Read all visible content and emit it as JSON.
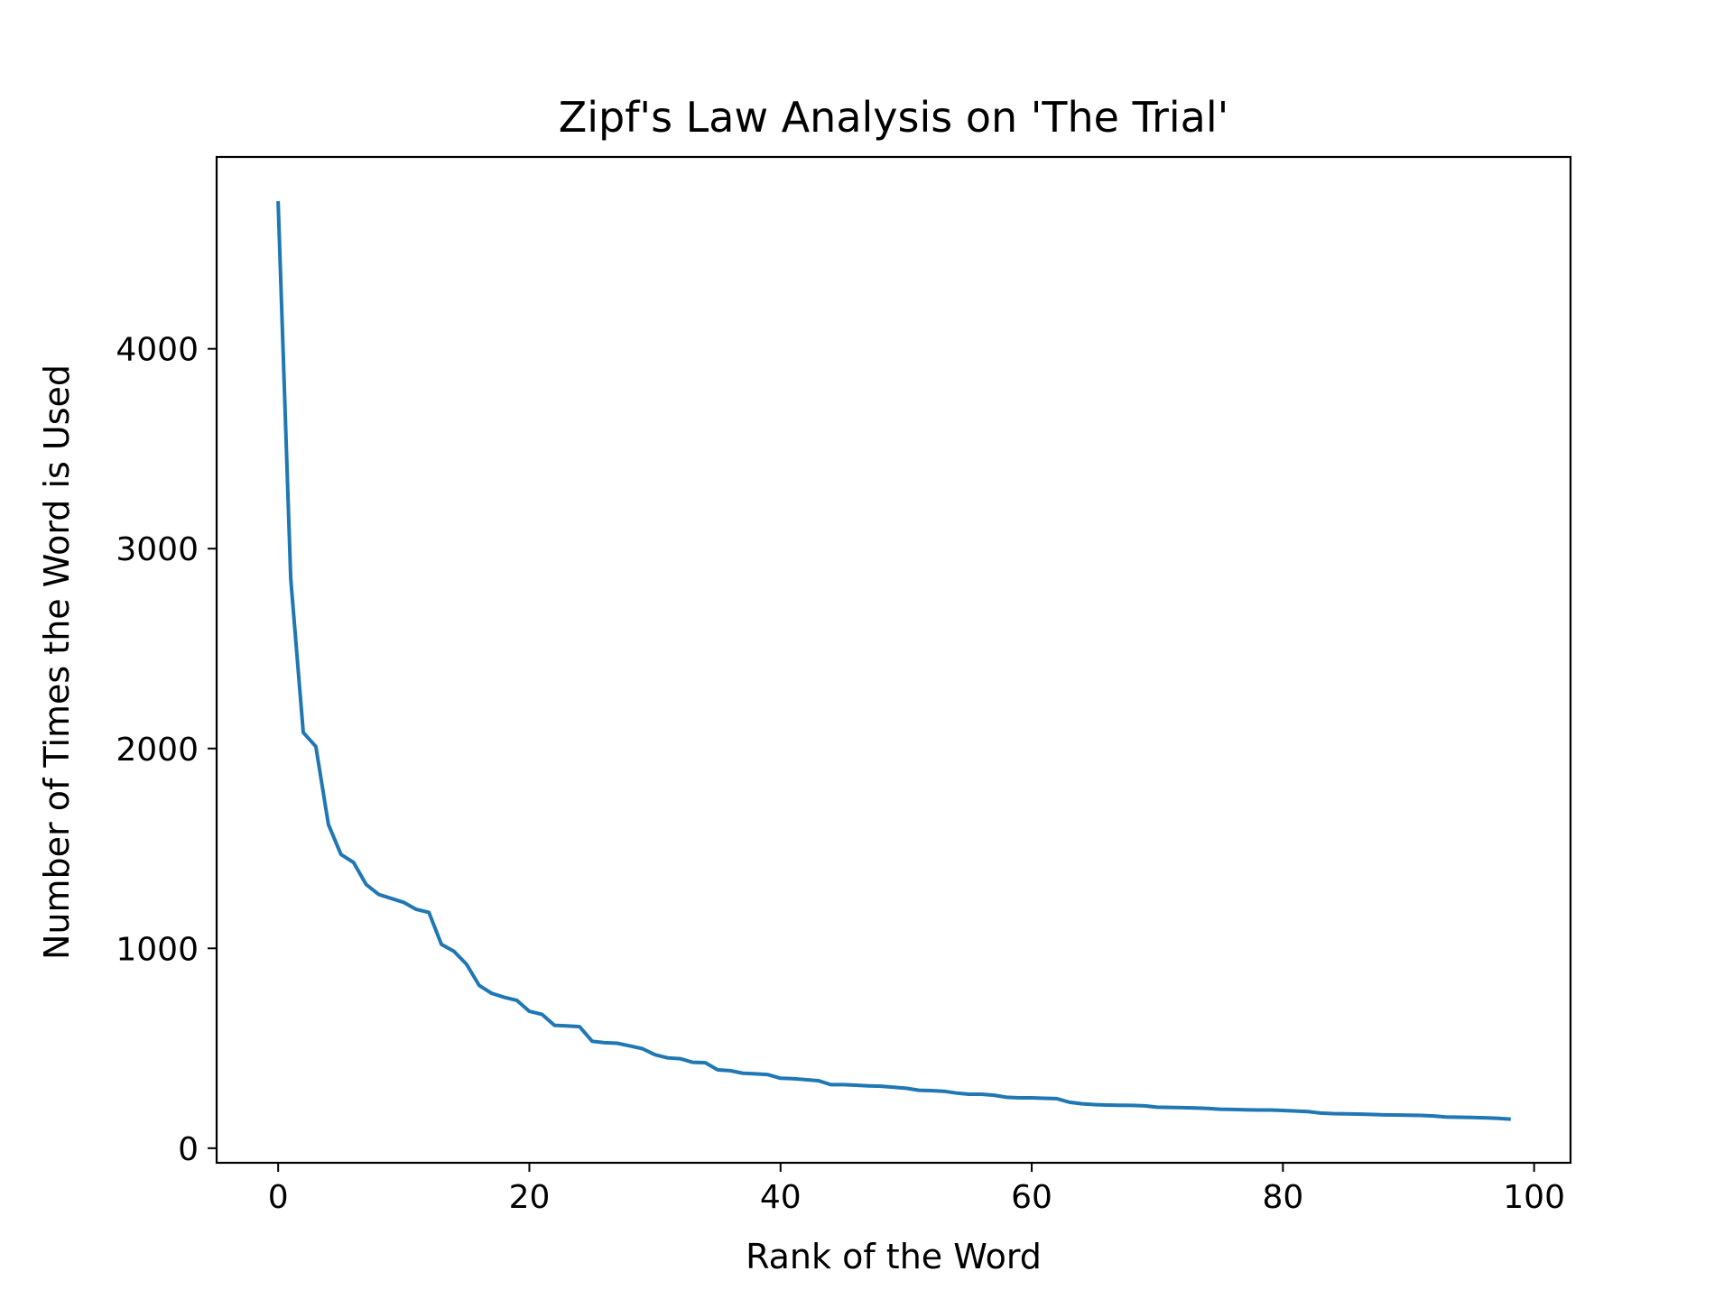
{
  "chart_data": {
    "type": "line",
    "title": "Zipf's Law Analysis on 'The Trial'",
    "xlabel": "Rank of the Word",
    "ylabel": "Number of Times the Word is Used",
    "xlim": [
      -4.9,
      102.9
    ],
    "ylim": [
      -73,
      4960
    ],
    "x_ticks": [
      0,
      20,
      40,
      60,
      80,
      100
    ],
    "y_ticks": [
      0,
      1000,
      2000,
      3000,
      4000
    ],
    "grid": false,
    "legend": "none",
    "line_color": "#1f77b4",
    "series": [
      {
        "x": [
          0,
          1,
          2,
          3,
          4,
          5,
          6,
          7,
          8,
          9,
          10,
          11,
          12,
          13,
          14,
          15,
          16,
          17,
          18,
          19,
          20,
          21,
          22,
          23,
          24,
          25,
          26,
          27,
          28,
          29,
          30,
          31,
          32,
          33,
          34,
          35,
          36,
          37,
          38,
          39,
          40,
          41,
          42,
          43,
          44,
          45,
          46,
          47,
          48,
          49,
          50,
          51,
          52,
          53,
          54,
          55,
          56,
          57,
          58,
          59,
          60,
          61,
          62,
          63,
          64,
          65,
          66,
          67,
          68,
          69,
          70,
          71,
          72,
          73,
          74,
          75,
          76,
          77,
          78,
          79,
          80,
          81,
          82,
          83,
          84,
          85,
          86,
          87,
          88,
          89,
          90,
          91,
          92,
          93,
          94,
          95,
          96,
          97,
          98
        ],
        "y": [
          4730,
          2850,
          2080,
          2010,
          1620,
          1470,
          1430,
          1320,
          1270,
          1250,
          1230,
          1195,
          1180,
          1020,
          985,
          920,
          815,
          775,
          755,
          740,
          685,
          670,
          615,
          612,
          608,
          535,
          528,
          525,
          512,
          498,
          468,
          452,
          448,
          430,
          428,
          392,
          388,
          375,
          372,
          368,
          350,
          348,
          343,
          338,
          318,
          318,
          315,
          312,
          310,
          305,
          300,
          290,
          288,
          285,
          276,
          270,
          270,
          265,
          255,
          252,
          252,
          250,
          248,
          230,
          222,
          218,
          216,
          215,
          214,
          212,
          205,
          204,
          203,
          201,
          199,
          195,
          194,
          192,
          191,
          191,
          189,
          186,
          183,
          176,
          173,
          172,
          171,
          169,
          167,
          166,
          165,
          164,
          161,
          156,
          155,
          154,
          152,
          150,
          146
        ]
      }
    ]
  }
}
